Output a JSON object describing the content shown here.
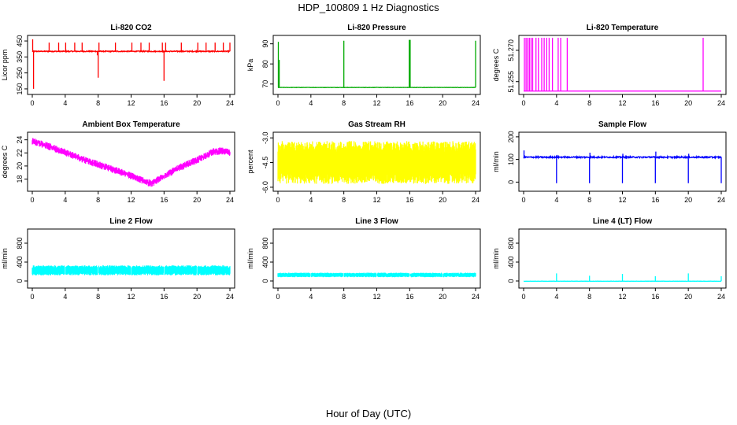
{
  "figure": {
    "title": "HDP_100809  1 Hz Diagnostics",
    "xlabel": "Hour of Day (UTC)"
  },
  "chart_data": [
    {
      "type": "line",
      "title": "Li-820 CO2",
      "ylabel": "Licor ppm",
      "color": "#ff0000",
      "xlim": [
        0,
        24
      ],
      "ylim": [
        130,
        470
      ],
      "xticks": [
        0,
        4,
        8,
        12,
        16,
        20,
        24
      ],
      "yticks": [
        150,
        250,
        350,
        450
      ],
      "series": [
        {
          "name": "Li-820 CO2",
          "baseline": 385,
          "noise": 6,
          "spikes": [
            [
              0.05,
              460
            ],
            [
              0.15,
              150
            ],
            [
              2.05,
              440
            ],
            [
              3.2,
              440
            ],
            [
              4.05,
              440
            ],
            [
              5.15,
              440
            ],
            [
              6.05,
              440
            ],
            [
              7.9,
              360
            ],
            [
              8.0,
              220
            ],
            [
              8.1,
              440
            ],
            [
              10.1,
              440
            ],
            [
              12.1,
              440
            ],
            [
              13.2,
              440
            ],
            [
              14.2,
              440
            ],
            [
              15.8,
              440
            ],
            [
              16.0,
              200
            ],
            [
              16.2,
              440
            ],
            [
              18.1,
              440
            ],
            [
              20.1,
              440
            ],
            [
              21.1,
              440
            ],
            [
              22.2,
              440
            ],
            [
              23.2,
              440
            ],
            [
              24.0,
              440
            ]
          ]
        }
      ]
    },
    {
      "type": "line",
      "title": "Li-820 Pressure",
      "ylabel": "kPa",
      "color": "#00aa00",
      "xlim": [
        0,
        24
      ],
      "ylim": [
        66,
        93
      ],
      "xticks": [
        0,
        4,
        8,
        12,
        16,
        20,
        24
      ],
      "yticks": [
        70,
        80,
        90
      ],
      "series": [
        {
          "name": "Li-820 Pressure",
          "baseline": 68.3,
          "noise": 0.15,
          "spikes": [
            [
              0.05,
              91
            ],
            [
              0.15,
              82
            ],
            [
              8.0,
              91.5
            ],
            [
              15.95,
              92
            ],
            [
              16.05,
              92
            ],
            [
              24.0,
              91.5
            ]
          ]
        }
      ]
    },
    {
      "type": "line",
      "title": "Li-820 Temperature",
      "ylabel": "degrees C",
      "color": "#ff00ff",
      "xlim": [
        0,
        24
      ],
      "ylim": [
        51.25,
        51.276
      ],
      "xticks": [
        0,
        4,
        8,
        12,
        16,
        20,
        24
      ],
      "ytick_labels": [
        "51.255",
        "51.270"
      ],
      "yticks": [
        51.255,
        51.27
      ],
      "series": [
        {
          "name": "Li-820 Temperature",
          "baseline": 51.2505,
          "high": 51.276,
          "spikes": [
            [
              0.1,
              51.276
            ],
            [
              0.3,
              51.276
            ],
            [
              0.5,
              51.276
            ],
            [
              0.7,
              51.276
            ],
            [
              0.9,
              51.276
            ],
            [
              1.1,
              51.276
            ],
            [
              1.5,
              51.276
            ],
            [
              1.8,
              51.276
            ],
            [
              2.2,
              51.276
            ],
            [
              2.5,
              51.276
            ],
            [
              2.8,
              51.276
            ],
            [
              3.1,
              51.276
            ],
            [
              3.5,
              51.276
            ],
            [
              4.2,
              51.276
            ],
            [
              4.5,
              51.276
            ],
            [
              5.3,
              51.276
            ],
            [
              21.8,
              51.276
            ]
          ]
        }
      ]
    },
    {
      "type": "line",
      "title": "Ambient Box Temperature",
      "ylabel": "degrees C",
      "color": "#ff00ff",
      "xlim": [
        0,
        24
      ],
      "ylim": [
        16.5,
        24.8
      ],
      "xticks": [
        0,
        4,
        8,
        12,
        16,
        20,
        24
      ],
      "yticks": [
        18,
        20,
        22,
        24
      ],
      "series": [
        {
          "name": "Ambient Box Temperature",
          "noise": 0.55,
          "x": [
            0,
            2,
            4,
            6,
            8,
            10,
            12,
            14,
            14.5,
            16,
            18,
            20,
            22,
            23,
            24
          ],
          "y": [
            23.8,
            23.0,
            22.1,
            21.1,
            20.2,
            19.4,
            18.5,
            17.5,
            17.3,
            18.5,
            19.8,
            20.9,
            22.2,
            22.3,
            22.0
          ]
        }
      ]
    },
    {
      "type": "line",
      "title": "Gas Stream RH",
      "ylabel": "percent",
      "color": "#ffff00",
      "xlim": [
        0,
        24
      ],
      "ylim": [
        -6.1,
        -2.8
      ],
      "xticks": [
        0,
        4,
        8,
        12,
        16,
        20,
        24
      ],
      "yticks": [
        -6.0,
        -4.5,
        -3.0
      ],
      "ytick_labels": [
        "-6.0",
        "-4.5",
        "-3.0"
      ],
      "series": [
        {
          "name": "Gas Stream RH",
          "band": [
            -5.8,
            -3.2
          ],
          "center": -4.55
        }
      ]
    },
    {
      "type": "line",
      "title": "Sample Flow",
      "ylabel": "ml/min",
      "color": "#0000ff",
      "xlim": [
        0,
        24
      ],
      "ylim": [
        -30,
        210
      ],
      "xticks": [
        0,
        4,
        8,
        12,
        16,
        20,
        24
      ],
      "yticks": [
        0,
        100,
        200
      ],
      "series": [
        {
          "name": "Sample Flow",
          "baseline": 110,
          "noise": 6,
          "spikes": [
            [
              0.05,
              140
            ],
            [
              4.0,
              -5
            ],
            [
              4.05,
              120
            ],
            [
              8.0,
              -5
            ],
            [
              8.05,
              130
            ],
            [
              12.0,
              -5
            ],
            [
              12.05,
              125
            ],
            [
              16.0,
              -5
            ],
            [
              16.05,
              135
            ],
            [
              20.0,
              -5
            ],
            [
              20.05,
              125
            ],
            [
              24.0,
              -5
            ]
          ]
        }
      ]
    },
    {
      "type": "line",
      "title": "Line 2 Flow",
      "ylabel": "ml/min",
      "color": "#00ffff",
      "xlim": [
        0,
        24
      ],
      "ylim": [
        -100,
        1050
      ],
      "xticks": [
        0,
        4,
        8,
        12,
        16,
        20,
        24
      ],
      "yticks": [
        0,
        400,
        800
      ],
      "series": [
        {
          "name": "Line 2 Flow",
          "band": [
            120,
            330
          ],
          "gaps": [
            4,
            8,
            12,
            16,
            20
          ]
        }
      ]
    },
    {
      "type": "line",
      "title": "Line 3 Flow",
      "ylabel": "ml/min",
      "color": "#00ffff",
      "xlim": [
        0,
        24
      ],
      "ylim": [
        -100,
        1050
      ],
      "xticks": [
        0,
        4,
        8,
        12,
        16,
        20,
        24
      ],
      "yticks": [
        0,
        400,
        800
      ],
      "series": [
        {
          "name": "Line 3 Flow",
          "band": [
            80,
            175
          ],
          "gaps": [
            4,
            8,
            12,
            16,
            20
          ]
        }
      ]
    },
    {
      "type": "line",
      "title": "Line 4 (LT) Flow",
      "ylabel": "ml/min",
      "color": "#00ffff",
      "xlim": [
        0,
        24
      ],
      "ylim": [
        -100,
        1050
      ],
      "xticks": [
        0,
        4,
        8,
        12,
        16,
        20,
        24
      ],
      "yticks": [
        0,
        400,
        800
      ],
      "series": [
        {
          "name": "Line 4 (LT) Flow",
          "baseline": -5,
          "noise": 4,
          "spikes": [
            [
              4.0,
              160
            ],
            [
              8.0,
              110
            ],
            [
              12.0,
              150
            ],
            [
              16.0,
              100
            ],
            [
              20.0,
              160
            ],
            [
              24.0,
              100
            ]
          ]
        }
      ]
    }
  ]
}
